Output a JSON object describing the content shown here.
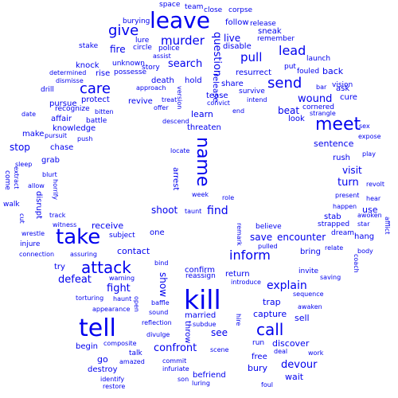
{
  "word_color": "#0000ee",
  "words": [
    "space",
    "team",
    "burying",
    "close",
    "corpse",
    "leave",
    "follow",
    "give",
    "sneak",
    "lure",
    "release",
    "remember",
    "stake",
    "circle",
    "police",
    "murder",
    "live",
    "disable",
    "put",
    "fouled",
    "launch",
    "unknown",
    "possesse",
    "story",
    "question",
    "pull",
    "lead",
    "back",
    "determined",
    "assist",
    "fire",
    "search",
    "resurrect",
    "knock",
    "dismisse",
    "approach",
    "hold",
    "share",
    "bar",
    "vision",
    "drill",
    "rise",
    "death",
    "release",
    "send",
    "ask",
    "care",
    "version",
    "survive",
    "tease",
    "intend",
    "wound",
    "cure",
    "recognize",
    "protect",
    "revive",
    "convict",
    "end",
    "cornered",
    "date",
    "bitten",
    "offer",
    "treat",
    "learn",
    "beat",
    "strangle",
    "pursue",
    "affair",
    "battle",
    "descend",
    "look",
    "meet",
    "knowledge",
    "threaten",
    "sex",
    "make",
    "pursuit",
    "push",
    "name",
    "sentence",
    "expose",
    "stop",
    "chase",
    "locate",
    "play",
    "grab",
    "rush",
    "sleep",
    "extract",
    "blurt",
    "arrest",
    "visit",
    "come",
    "allow",
    "horrify",
    "turn",
    "revolt",
    "week",
    "present",
    "disrupt",
    "taunt",
    "role",
    "walk",
    "hear",
    "shoot",
    "find",
    "happen",
    "track",
    "awoken",
    "cut",
    "witness",
    "star",
    "receive",
    "believe",
    "stab",
    "strapped",
    "use",
    "wrestle",
    "take",
    "remark",
    "afflict",
    "subject",
    "one",
    "injure",
    "dream",
    "save",
    "encounter",
    "hang",
    "inform",
    "contact",
    "pulled",
    "relate",
    "connection",
    "assuring",
    "body",
    "bring",
    "attack",
    "try",
    "fight",
    "bind",
    "invite",
    "explain",
    "coach",
    "show",
    "confirm",
    "defeat",
    "warning",
    "reassign",
    "return",
    "saving",
    "introduce",
    "kill",
    "sequence",
    "torturing",
    "haunt",
    "trap",
    "open",
    "baffle",
    "awaken",
    "appearance",
    "capture",
    "sell",
    "sound",
    "married",
    "hire",
    "tell",
    "call",
    "reflection",
    "subdue",
    "divulge",
    "discover",
    "run",
    "begin",
    "confront",
    "composite",
    "see",
    "talk",
    "scene",
    "deal",
    "work",
    "throw",
    "free",
    "go",
    "commit",
    "amazed",
    "devour",
    "destroy",
    "bury",
    "befriend",
    "infuriate",
    "wait",
    "identify",
    "son",
    "restore",
    "luring",
    "foul"
  ]
}
